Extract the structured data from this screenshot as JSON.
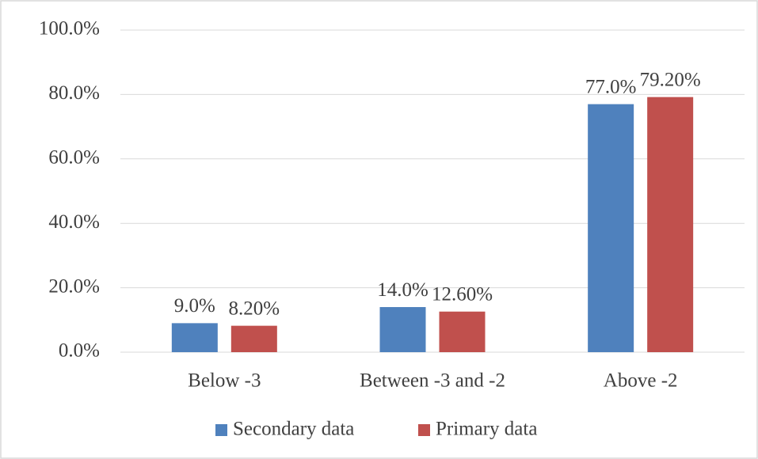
{
  "chart_data": {
    "type": "bar",
    "categories": [
      "Below -3",
      "Between -3 and -2",
      "Above -2"
    ],
    "series": [
      {
        "name": "Secondary data",
        "color": "#4f81bd",
        "values": [
          9,
          14,
          77
        ],
        "value_labels": [
          "9.0%",
          "14.0%",
          "77.0%"
        ]
      },
      {
        "name": "Primary data",
        "color": "#c0504d",
        "values": [
          8.2,
          12.6,
          79.2
        ],
        "value_labels": [
          "8.20%",
          "12.60%",
          "79.20%"
        ]
      }
    ],
    "ylim": [
      0,
      100
    ],
    "yticks": [
      {
        "value": 0,
        "label": "0.0%"
      },
      {
        "value": 20,
        "label": "20.0%"
      },
      {
        "value": 40,
        "label": "40.0%"
      },
      {
        "value": 60,
        "label": "60.0%"
      },
      {
        "value": 80,
        "label": "80.0%"
      },
      {
        "value": 100,
        "label": "100.0%"
      }
    ],
    "grid": true,
    "legend": "bottom"
  }
}
